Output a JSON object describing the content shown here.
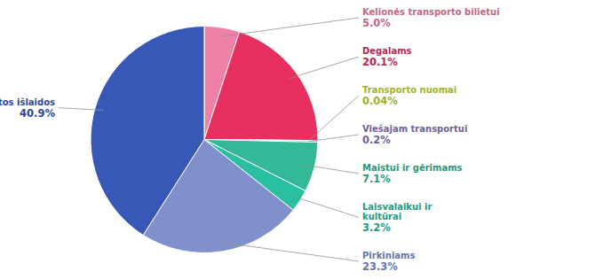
{
  "chart_data": {
    "type": "pie",
    "categories": [
      "Kelionės transporto bilietui",
      "Degalams",
      "Transporto nuomai",
      "Viešajam transportui",
      "Maistui ir gėrimams",
      "Laisvalaikui ir\nkultūrai",
      "Pirkiniams",
      "Kitos išlaidos"
    ],
    "values": [
      5.0,
      20.1,
      0.04,
      0.2,
      7.1,
      3.2,
      23.3,
      40.9
    ],
    "value_labels": [
      "5.0%",
      "20.1%",
      "0.04%",
      "0.2%",
      "7.1%",
      "3.2%",
      "23.3%",
      "40.9%"
    ],
    "colors": [
      "#f080a8",
      "#e83060",
      "#c8dc30",
      "#8878b8",
      "#35b898",
      "#28c0a0",
      "#8090cc",
      "#3858b8"
    ],
    "data_labels": true
  }
}
